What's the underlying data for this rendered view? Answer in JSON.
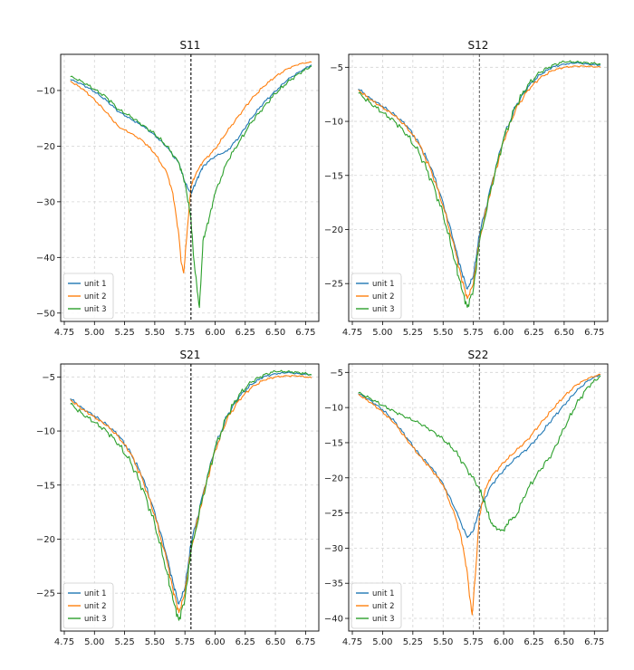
{
  "colors": {
    "unit1": "#1f77b4",
    "unit2": "#ff7f0e",
    "unit3": "#2ca02c",
    "grid": "#d4d4d4",
    "axis": "#000000"
  },
  "chart_data": [
    {
      "type": "line",
      "title": "S11",
      "xlabel": "",
      "ylabel": "",
      "xlim": [
        4.72,
        6.86
      ],
      "ylim": [
        -51.5,
        -3.5
      ],
      "xticks": [
        4.75,
        5.0,
        5.25,
        5.5,
        5.75,
        6.0,
        6.25,
        6.5,
        6.75
      ],
      "xtick_labels": [
        "4.75",
        "5.00",
        "5.25",
        "5.50",
        "5.75",
        "6.00",
        "6.25",
        "6.50",
        "6.75"
      ],
      "yticks": [
        -10,
        -20,
        -30,
        -40,
        -50
      ],
      "ytick_labels": [
        "−10",
        "−20",
        "−30",
        "−40",
        "−50"
      ],
      "vline": {
        "x": 5.8,
        "style": "dashed",
        "color": "#000000"
      },
      "legend": "lower-left",
      "grid": true,
      "series": [
        {
          "name": "unit 1",
          "color_key": "unit1",
          "x": [
            4.8,
            4.9,
            5.0,
            5.1,
            5.2,
            5.3,
            5.4,
            5.5,
            5.6,
            5.7,
            5.75,
            5.8,
            5.85,
            5.9,
            6.0,
            6.1,
            6.2,
            6.3,
            6.4,
            6.5,
            6.6,
            6.7,
            6.8
          ],
          "y": [
            -8.0,
            -8.9,
            -10.2,
            -11.8,
            -13.8,
            -15.1,
            -16.4,
            -18.0,
            -20.2,
            -23.0,
            -26.5,
            -28.6,
            -26.0,
            -23.6,
            -21.8,
            -20.9,
            -18.3,
            -15.0,
            -12.3,
            -10.1,
            -8.1,
            -6.6,
            -5.4
          ]
        },
        {
          "name": "unit 2",
          "color_key": "unit2",
          "x": [
            4.8,
            4.9,
            5.0,
            5.1,
            5.2,
            5.3,
            5.4,
            5.5,
            5.6,
            5.65,
            5.7,
            5.72,
            5.74,
            5.76,
            5.8,
            5.85,
            5.9,
            6.0,
            6.1,
            6.2,
            6.3,
            6.4,
            6.5,
            6.6,
            6.7,
            6.8
          ],
          "y": [
            -8.3,
            -9.7,
            -11.6,
            -14.0,
            -16.5,
            -17.7,
            -19.0,
            -21.3,
            -24.8,
            -28.5,
            -36.0,
            -41.0,
            -42.8,
            -37.5,
            -27.2,
            -24.5,
            -22.8,
            -20.5,
            -17.4,
            -14.4,
            -11.6,
            -9.3,
            -7.5,
            -6.1,
            -5.2,
            -4.9
          ]
        },
        {
          "name": "unit 3",
          "color_key": "unit3",
          "x": [
            4.8,
            4.9,
            5.0,
            5.1,
            5.2,
            5.3,
            5.4,
            5.5,
            5.6,
            5.7,
            5.75,
            5.8,
            5.82,
            5.85,
            5.87,
            5.9,
            5.95,
            6.0,
            6.1,
            6.2,
            6.3,
            6.4,
            6.5,
            6.6,
            6.7,
            6.8
          ],
          "y": [
            -7.5,
            -8.4,
            -9.8,
            -11.2,
            -13.4,
            -14.7,
            -16.2,
            -17.8,
            -20.0,
            -23.0,
            -26.5,
            -33.0,
            -39.5,
            -45.5,
            -49.0,
            -37.0,
            -33.0,
            -28.5,
            -22.8,
            -19.2,
            -15.8,
            -13.0,
            -10.6,
            -8.5,
            -6.9,
            -5.6
          ]
        }
      ]
    },
    {
      "type": "line",
      "title": "S12",
      "xlabel": "",
      "ylabel": "",
      "xlim": [
        4.72,
        6.86
      ],
      "ylim": [
        -28.5,
        -3.8
      ],
      "xticks": [
        4.75,
        5.0,
        5.25,
        5.5,
        5.75,
        6.0,
        6.25,
        6.5,
        6.75
      ],
      "xtick_labels": [
        "4.75",
        "5.00",
        "5.25",
        "5.50",
        "5.75",
        "6.00",
        "6.25",
        "6.50",
        "6.75"
      ],
      "yticks": [
        -5,
        -10,
        -15,
        -20,
        -25
      ],
      "ytick_labels": [
        "−5",
        "−10",
        "−15",
        "−20",
        "−25"
      ],
      "vline": {
        "x": 5.8,
        "style": "dashed",
        "color": "#666666"
      },
      "legend": "lower-left",
      "grid": true,
      "series": [
        {
          "name": "unit 1",
          "color_key": "unit1",
          "x": [
            4.8,
            4.9,
            5.0,
            5.1,
            5.2,
            5.3,
            5.4,
            5.5,
            5.6,
            5.65,
            5.7,
            5.75,
            5.8,
            5.9,
            6.0,
            6.1,
            6.2,
            6.3,
            6.4,
            6.5,
            6.6,
            6.7,
            6.8
          ],
          "y": [
            -7.0,
            -7.9,
            -8.6,
            -9.4,
            -10.4,
            -12.0,
            -14.3,
            -17.5,
            -21.6,
            -23.8,
            -25.5,
            -24.3,
            -20.5,
            -15.8,
            -11.5,
            -8.6,
            -6.8,
            -5.7,
            -5.0,
            -4.7,
            -4.6,
            -4.7,
            -4.8
          ]
        },
        {
          "name": "unit 2",
          "color_key": "unit2",
          "x": [
            4.8,
            4.9,
            5.0,
            5.1,
            5.2,
            5.3,
            5.4,
            5.5,
            5.6,
            5.65,
            5.7,
            5.75,
            5.8,
            5.9,
            6.0,
            6.1,
            6.2,
            6.3,
            6.4,
            6.5,
            6.6,
            6.7,
            6.8
          ],
          "y": [
            -7.1,
            -8.0,
            -8.7,
            -9.5,
            -10.5,
            -12.1,
            -14.5,
            -17.8,
            -22.0,
            -24.4,
            -26.4,
            -25.0,
            -21.0,
            -16.0,
            -11.8,
            -8.9,
            -7.1,
            -6.0,
            -5.3,
            -5.0,
            -4.9,
            -4.9,
            -5.0
          ]
        },
        {
          "name": "unit 3",
          "color_key": "unit3",
          "x": [
            4.8,
            4.9,
            5.0,
            5.1,
            5.2,
            5.3,
            5.4,
            5.5,
            5.6,
            5.65,
            5.7,
            5.75,
            5.8,
            5.9,
            6.0,
            6.1,
            6.2,
            6.3,
            6.4,
            6.5,
            6.6,
            6.7,
            6.8
          ],
          "y": [
            -7.4,
            -8.3,
            -9.2,
            -10.0,
            -11.2,
            -12.9,
            -15.3,
            -18.6,
            -23.0,
            -25.4,
            -27.2,
            -25.5,
            -21.2,
            -16.0,
            -11.6,
            -8.6,
            -6.6,
            -5.5,
            -4.8,
            -4.5,
            -4.5,
            -4.6,
            -4.7
          ]
        }
      ]
    },
    {
      "type": "line",
      "title": "S21",
      "xlabel": "",
      "ylabel": "",
      "xlim": [
        4.72,
        6.86
      ],
      "ylim": [
        -28.5,
        -3.8
      ],
      "xticks": [
        4.75,
        5.0,
        5.25,
        5.5,
        5.75,
        6.0,
        6.25,
        6.5,
        6.75
      ],
      "xtick_labels": [
        "4.75",
        "5.00",
        "5.25",
        "5.50",
        "5.75",
        "6.00",
        "6.25",
        "6.50",
        "6.75"
      ],
      "yticks": [
        -5,
        -10,
        -15,
        -20,
        -25
      ],
      "ytick_labels": [
        "−5",
        "−10",
        "−15",
        "−20",
        "−25"
      ],
      "vline": {
        "x": 5.8,
        "style": "dashed",
        "color": "#000000"
      },
      "legend": "lower-left",
      "grid": true,
      "series": [
        {
          "name": "unit 1",
          "color_key": "unit1",
          "x": [
            4.8,
            4.9,
            5.0,
            5.1,
            5.2,
            5.3,
            5.4,
            5.5,
            5.6,
            5.65,
            5.7,
            5.75,
            5.8,
            5.9,
            6.0,
            6.1,
            6.2,
            6.3,
            6.4,
            6.5,
            6.6,
            6.7,
            6.8
          ],
          "y": [
            -7.0,
            -7.9,
            -8.6,
            -9.4,
            -10.4,
            -12.0,
            -14.3,
            -17.5,
            -21.6,
            -24.0,
            -26.0,
            -24.5,
            -20.5,
            -15.8,
            -11.5,
            -8.6,
            -6.8,
            -5.7,
            -5.0,
            -4.7,
            -4.6,
            -4.7,
            -4.8
          ]
        },
        {
          "name": "unit 2",
          "color_key": "unit2",
          "x": [
            4.8,
            4.9,
            5.0,
            5.1,
            5.2,
            5.3,
            5.4,
            5.5,
            5.6,
            5.65,
            5.7,
            5.75,
            5.8,
            5.9,
            6.0,
            6.1,
            6.2,
            6.3,
            6.4,
            6.5,
            6.6,
            6.7,
            6.8
          ],
          "y": [
            -7.1,
            -8.0,
            -8.7,
            -9.5,
            -10.5,
            -12.1,
            -14.5,
            -17.8,
            -22.0,
            -24.6,
            -26.8,
            -25.0,
            -21.0,
            -16.0,
            -11.8,
            -8.9,
            -7.1,
            -6.0,
            -5.3,
            -5.0,
            -4.9,
            -4.9,
            -5.1
          ]
        },
        {
          "name": "unit 3",
          "color_key": "unit3",
          "x": [
            4.8,
            4.9,
            5.0,
            5.1,
            5.2,
            5.3,
            5.4,
            5.5,
            5.6,
            5.65,
            5.7,
            5.75,
            5.8,
            5.9,
            6.0,
            6.1,
            6.2,
            6.3,
            6.4,
            6.5,
            6.6,
            6.7,
            6.8
          ],
          "y": [
            -7.5,
            -8.4,
            -9.2,
            -10.0,
            -11.2,
            -12.9,
            -15.3,
            -18.6,
            -23.0,
            -25.6,
            -27.5,
            -25.5,
            -21.2,
            -16.0,
            -11.6,
            -8.6,
            -6.6,
            -5.5,
            -4.8,
            -4.5,
            -4.5,
            -4.6,
            -4.8
          ]
        }
      ]
    },
    {
      "type": "line",
      "title": "S22",
      "xlabel": "",
      "ylabel": "",
      "xlim": [
        4.72,
        6.86
      ],
      "ylim": [
        -41.8,
        -3.8
      ],
      "xticks": [
        4.75,
        5.0,
        5.25,
        5.5,
        5.75,
        6.0,
        6.25,
        6.5,
        6.75
      ],
      "xtick_labels": [
        "4.75",
        "5.00",
        "5.25",
        "5.50",
        "5.75",
        "6.00",
        "6.25",
        "6.50",
        "6.75"
      ],
      "yticks": [
        -5,
        -10,
        -15,
        -20,
        -25,
        -30,
        -35,
        -40
      ],
      "ytick_labels": [
        "−5",
        "−10",
        "−15",
        "−20",
        "−25",
        "−30",
        "−35",
        "−40"
      ],
      "vline": {
        "x": 5.8,
        "style": "dashed",
        "color": "#666666"
      },
      "legend": "lower-left",
      "grid": true,
      "series": [
        {
          "name": "unit 1",
          "color_key": "unit1",
          "x": [
            4.8,
            4.9,
            5.0,
            5.1,
            5.2,
            5.3,
            5.4,
            5.5,
            5.6,
            5.7,
            5.75,
            5.8,
            5.9,
            6.0,
            6.1,
            6.2,
            6.3,
            6.4,
            6.5,
            6.6,
            6.7,
            6.8
          ],
          "y": [
            -8.0,
            -9.0,
            -10.3,
            -12.0,
            -14.3,
            -16.6,
            -18.5,
            -20.8,
            -24.5,
            -28.5,
            -27.5,
            -24.5,
            -21.0,
            -18.9,
            -17.2,
            -15.8,
            -13.9,
            -11.7,
            -9.6,
            -7.7,
            -6.1,
            -5.3
          ]
        },
        {
          "name": "unit 2",
          "color_key": "unit2",
          "x": [
            4.8,
            4.9,
            5.0,
            5.1,
            5.2,
            5.3,
            5.4,
            5.5,
            5.6,
            5.65,
            5.7,
            5.72,
            5.74,
            5.77,
            5.8,
            5.85,
            5.9,
            6.0,
            6.1,
            6.2,
            6.3,
            6.4,
            6.5,
            6.6,
            6.7,
            6.8
          ],
          "y": [
            -8.1,
            -9.3,
            -10.6,
            -12.3,
            -14.5,
            -16.8,
            -18.7,
            -21.0,
            -25.5,
            -28.5,
            -33.5,
            -37.0,
            -39.5,
            -33.0,
            -25.5,
            -21.5,
            -19.8,
            -17.8,
            -16.2,
            -14.5,
            -12.4,
            -10.3,
            -8.4,
            -6.8,
            -5.8,
            -5.3
          ]
        },
        {
          "name": "unit 3",
          "color_key": "unit3",
          "x": [
            4.8,
            4.9,
            5.0,
            5.1,
            5.2,
            5.3,
            5.4,
            5.5,
            5.6,
            5.7,
            5.8,
            5.85,
            5.9,
            5.95,
            6.0,
            6.05,
            6.1,
            6.2,
            6.3,
            6.4,
            6.5,
            6.6,
            6.7,
            6.8
          ],
          "y": [
            -7.9,
            -8.7,
            -9.7,
            -10.6,
            -11.4,
            -12.2,
            -13.2,
            -14.5,
            -16.2,
            -18.8,
            -21.5,
            -24.0,
            -26.5,
            -27.3,
            -27.5,
            -26.0,
            -25.5,
            -21.5,
            -19.0,
            -16.5,
            -13.0,
            -9.5,
            -7.0,
            -5.5
          ]
        }
      ]
    }
  ]
}
